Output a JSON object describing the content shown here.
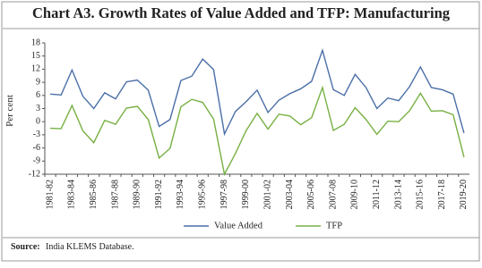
{
  "chart_data": {
    "type": "line",
    "title": "Chart A3. Growth Rates of Value Added and TFP: Manufacturing",
    "y_label": "Per cent",
    "source_label": "Source:",
    "source_text": "India KLEMS Database.",
    "categories": [
      "1981-82",
      null,
      "1983-84",
      null,
      "1985-86",
      null,
      "1987-88",
      null,
      "1989-90",
      null,
      "1991-92",
      null,
      "1993-94",
      null,
      "1995-96",
      null,
      "1997-98",
      null,
      "1999-00",
      null,
      "2001-02",
      null,
      "2003-04",
      null,
      "2005-06",
      null,
      "2007-08",
      null,
      "2009-10",
      null,
      "2011-12",
      null,
      "2013-14",
      null,
      "2015-16",
      null,
      "2017-18",
      null,
      "2019-20"
    ],
    "series": [
      {
        "name": "Value Added",
        "color": "#4a6fa8",
        "values": [
          6.3,
          6.1,
          11.8,
          5.8,
          3.0,
          6.6,
          5.2,
          9.1,
          9.5,
          7.2,
          -1.1,
          0.5,
          9.4,
          10.4,
          14.3,
          11.9,
          -2.8,
          2.3,
          4.6,
          7.2,
          2.1,
          4.9,
          6.4,
          7.5,
          9.2,
          16.3,
          7.3,
          6.0,
          10.8,
          7.8,
          3.0,
          5.4,
          4.8,
          8.0,
          12.5,
          7.8,
          7.3,
          6.3,
          -2.6
        ]
      },
      {
        "name": "TFP",
        "color": "#77b043",
        "values": [
          -1.5,
          -1.6,
          3.7,
          -2.1,
          -4.8,
          0.3,
          -0.6,
          3.1,
          3.5,
          0.5,
          -8.3,
          -6.1,
          3.4,
          5.1,
          4.4,
          0.6,
          -12.0,
          -7.3,
          -2.0,
          1.9,
          -1.7,
          1.7,
          1.3,
          -0.7,
          0.9,
          7.8,
          -2.0,
          -0.6,
          3.2,
          0.5,
          -2.9,
          0.1,
          0.0,
          2.5,
          6.5,
          2.4,
          2.5,
          1.6,
          -8.1
        ]
      }
    ],
    "ylim": [
      -12,
      18
    ],
    "yticks": [
      -12,
      -9,
      -6,
      -3,
      0,
      3,
      6,
      9,
      12,
      15,
      18
    ],
    "grid": false
  }
}
